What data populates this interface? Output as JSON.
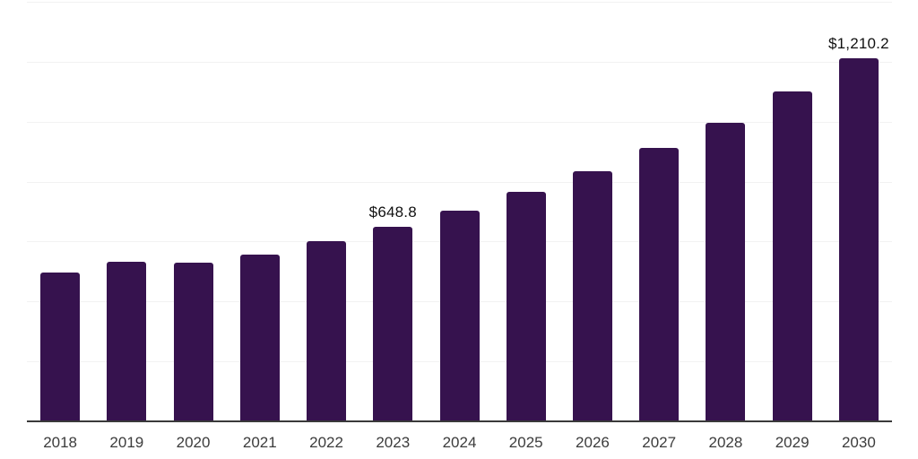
{
  "chart_data": {
    "type": "bar",
    "title": "",
    "xlabel": "",
    "ylabel": "",
    "categories": [
      "2018",
      "2019",
      "2020",
      "2021",
      "2022",
      "2023",
      "2024",
      "2025",
      "2026",
      "2027",
      "2028",
      "2029",
      "2030"
    ],
    "values": [
      498,
      533,
      530,
      555,
      600,
      648.8,
      704,
      766,
      835,
      911,
      996,
      1100,
      1210.2
    ],
    "data_labels": {
      "2023": "$648.8",
      "2030": "$1,210.2"
    },
    "ylim": [
      0,
      1400
    ],
    "grid_step": 200,
    "grid": "horizontal",
    "legend": "none",
    "colors": {
      "bar": "#36124E",
      "axis_line": "#3a3a3a",
      "gridline": "#f2f2f2",
      "data_label_text": "#111111",
      "tick_label_text": "#3c3c3c",
      "background": "#ffffff"
    }
  }
}
